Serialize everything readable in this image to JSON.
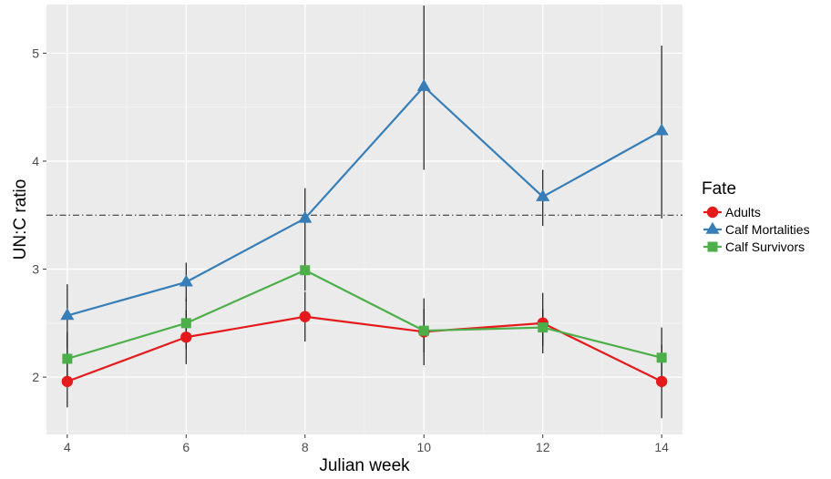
{
  "chart_data": {
    "type": "line",
    "xlabel": "Julian week",
    "ylabel": "UN:C ratio",
    "x": [
      4,
      6,
      8,
      10,
      12,
      14
    ],
    "x_ticks": [
      "4",
      "6",
      "8",
      "10",
      "12",
      "14"
    ],
    "y_ticks": [
      "2",
      "3",
      "4",
      "5"
    ],
    "xlim": [
      3.65,
      14.35
    ],
    "ylim": [
      1.47,
      5.45
    ],
    "grid": true,
    "reference_line": {
      "y": 3.5,
      "style": "dash-dot",
      "color": "#222222"
    },
    "legend": {
      "title": "Fate",
      "position": "right"
    },
    "series": [
      {
        "name": "Adults",
        "marker": "circle",
        "color": "#e41a1c",
        "values": [
          1.96,
          2.37,
          2.56,
          2.42,
          2.5,
          1.96
        ],
        "error_low": [
          1.72,
          2.12,
          2.33,
          2.11,
          2.22,
          1.62
        ],
        "error_high": [
          2.4,
          2.62,
          2.79,
          2.73,
          2.78,
          2.3
        ]
      },
      {
        "name": "Calf Mortalities",
        "marker": "triangle",
        "color": "#377eb8",
        "values": [
          2.57,
          2.88,
          3.47,
          4.69,
          3.67,
          4.28
        ],
        "error_low": [
          2.28,
          2.7,
          3.19,
          3.92,
          3.4,
          3.47
        ],
        "error_high": [
          2.86,
          3.06,
          3.75,
          5.44,
          3.92,
          5.07
        ]
      },
      {
        "name": "Calf Survivors",
        "marker": "square",
        "color": "#4daf4a",
        "values": [
          2.17,
          2.5,
          2.99,
          2.43,
          2.46,
          2.18
        ],
        "error_low": [
          1.94,
          2.26,
          2.8,
          2.23,
          2.29,
          1.9
        ],
        "error_high": [
          2.42,
          2.73,
          3.19,
          2.63,
          2.63,
          2.46
        ]
      }
    ]
  }
}
